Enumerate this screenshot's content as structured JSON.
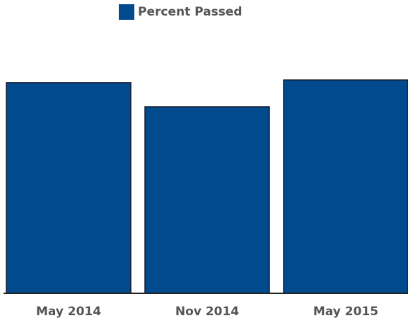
{
  "chart_data": {
    "type": "bar",
    "series": [
      {
        "name": "Percent Passed",
        "color": "#004a8d",
        "values": [
          79.5,
          70.4,
          80.5
        ]
      }
    ],
    "categories": [
      "May 2014",
      "Nov 2014",
      "May 2015"
    ],
    "ylim": [
      0,
      100
    ]
  }
}
